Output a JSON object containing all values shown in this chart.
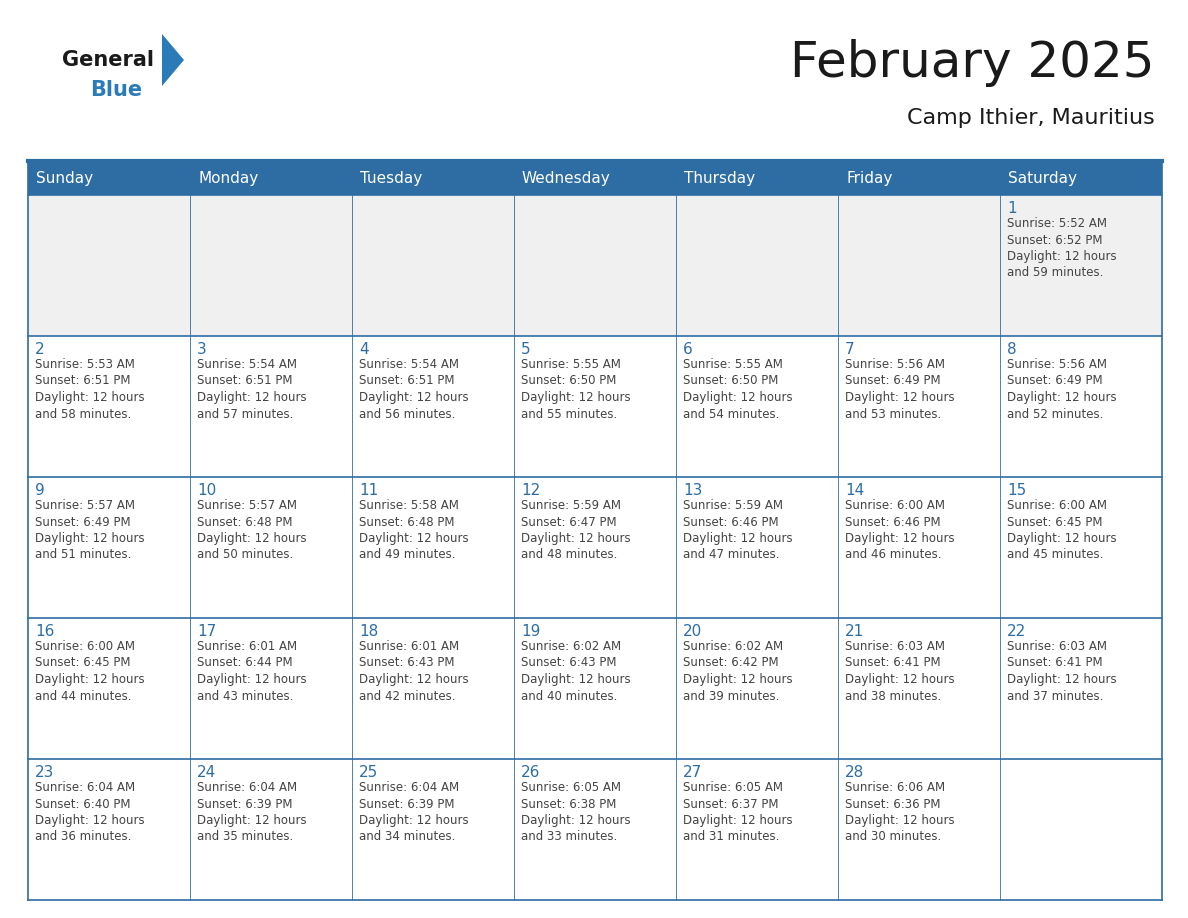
{
  "title": "February 2025",
  "subtitle": "Camp Ithier, Mauritius",
  "header_bg": "#2E6DA4",
  "header_text": "#FFFFFF",
  "cell_bg_row1": "#F0F0F0",
  "cell_bg_other": "#FFFFFF",
  "border_color": "#2E6DA4",
  "text_color": "#444444",
  "day_number_color": "#2E6DA4",
  "day_headers": [
    "Sunday",
    "Monday",
    "Tuesday",
    "Wednesday",
    "Thursday",
    "Friday",
    "Saturday"
  ],
  "calendar_data": [
    [
      {
        "day": "",
        "info": ""
      },
      {
        "day": "",
        "info": ""
      },
      {
        "day": "",
        "info": ""
      },
      {
        "day": "",
        "info": ""
      },
      {
        "day": "",
        "info": ""
      },
      {
        "day": "",
        "info": ""
      },
      {
        "day": "1",
        "info": "Sunrise: 5:52 AM\nSunset: 6:52 PM\nDaylight: 12 hours\nand 59 minutes."
      }
    ],
    [
      {
        "day": "2",
        "info": "Sunrise: 5:53 AM\nSunset: 6:51 PM\nDaylight: 12 hours\nand 58 minutes."
      },
      {
        "day": "3",
        "info": "Sunrise: 5:54 AM\nSunset: 6:51 PM\nDaylight: 12 hours\nand 57 minutes."
      },
      {
        "day": "4",
        "info": "Sunrise: 5:54 AM\nSunset: 6:51 PM\nDaylight: 12 hours\nand 56 minutes."
      },
      {
        "day": "5",
        "info": "Sunrise: 5:55 AM\nSunset: 6:50 PM\nDaylight: 12 hours\nand 55 minutes."
      },
      {
        "day": "6",
        "info": "Sunrise: 5:55 AM\nSunset: 6:50 PM\nDaylight: 12 hours\nand 54 minutes."
      },
      {
        "day": "7",
        "info": "Sunrise: 5:56 AM\nSunset: 6:49 PM\nDaylight: 12 hours\nand 53 minutes."
      },
      {
        "day": "8",
        "info": "Sunrise: 5:56 AM\nSunset: 6:49 PM\nDaylight: 12 hours\nand 52 minutes."
      }
    ],
    [
      {
        "day": "9",
        "info": "Sunrise: 5:57 AM\nSunset: 6:49 PM\nDaylight: 12 hours\nand 51 minutes."
      },
      {
        "day": "10",
        "info": "Sunrise: 5:57 AM\nSunset: 6:48 PM\nDaylight: 12 hours\nand 50 minutes."
      },
      {
        "day": "11",
        "info": "Sunrise: 5:58 AM\nSunset: 6:48 PM\nDaylight: 12 hours\nand 49 minutes."
      },
      {
        "day": "12",
        "info": "Sunrise: 5:59 AM\nSunset: 6:47 PM\nDaylight: 12 hours\nand 48 minutes."
      },
      {
        "day": "13",
        "info": "Sunrise: 5:59 AM\nSunset: 6:46 PM\nDaylight: 12 hours\nand 47 minutes."
      },
      {
        "day": "14",
        "info": "Sunrise: 6:00 AM\nSunset: 6:46 PM\nDaylight: 12 hours\nand 46 minutes."
      },
      {
        "day": "15",
        "info": "Sunrise: 6:00 AM\nSunset: 6:45 PM\nDaylight: 12 hours\nand 45 minutes."
      }
    ],
    [
      {
        "day": "16",
        "info": "Sunrise: 6:00 AM\nSunset: 6:45 PM\nDaylight: 12 hours\nand 44 minutes."
      },
      {
        "day": "17",
        "info": "Sunrise: 6:01 AM\nSunset: 6:44 PM\nDaylight: 12 hours\nand 43 minutes."
      },
      {
        "day": "18",
        "info": "Sunrise: 6:01 AM\nSunset: 6:43 PM\nDaylight: 12 hours\nand 42 minutes."
      },
      {
        "day": "19",
        "info": "Sunrise: 6:02 AM\nSunset: 6:43 PM\nDaylight: 12 hours\nand 40 minutes."
      },
      {
        "day": "20",
        "info": "Sunrise: 6:02 AM\nSunset: 6:42 PM\nDaylight: 12 hours\nand 39 minutes."
      },
      {
        "day": "21",
        "info": "Sunrise: 6:03 AM\nSunset: 6:41 PM\nDaylight: 12 hours\nand 38 minutes."
      },
      {
        "day": "22",
        "info": "Sunrise: 6:03 AM\nSunset: 6:41 PM\nDaylight: 12 hours\nand 37 minutes."
      }
    ],
    [
      {
        "day": "23",
        "info": "Sunrise: 6:04 AM\nSunset: 6:40 PM\nDaylight: 12 hours\nand 36 minutes."
      },
      {
        "day": "24",
        "info": "Sunrise: 6:04 AM\nSunset: 6:39 PM\nDaylight: 12 hours\nand 35 minutes."
      },
      {
        "day": "25",
        "info": "Sunrise: 6:04 AM\nSunset: 6:39 PM\nDaylight: 12 hours\nand 34 minutes."
      },
      {
        "day": "26",
        "info": "Sunrise: 6:05 AM\nSunset: 6:38 PM\nDaylight: 12 hours\nand 33 minutes."
      },
      {
        "day": "27",
        "info": "Sunrise: 6:05 AM\nSunset: 6:37 PM\nDaylight: 12 hours\nand 31 minutes."
      },
      {
        "day": "28",
        "info": "Sunrise: 6:06 AM\nSunset: 6:36 PM\nDaylight: 12 hours\nand 30 minutes."
      },
      {
        "day": "",
        "info": ""
      }
    ]
  ],
  "logo_text_general": "General",
  "logo_text_blue": "Blue",
  "logo_color_general": "#1A1A1A",
  "logo_color_blue": "#2B7BB9",
  "logo_triangle_color": "#2B7BB9",
  "title_fontsize": 36,
  "subtitle_fontsize": 16,
  "header_fontsize": 11,
  "day_num_fontsize": 11,
  "info_fontsize": 8.5
}
